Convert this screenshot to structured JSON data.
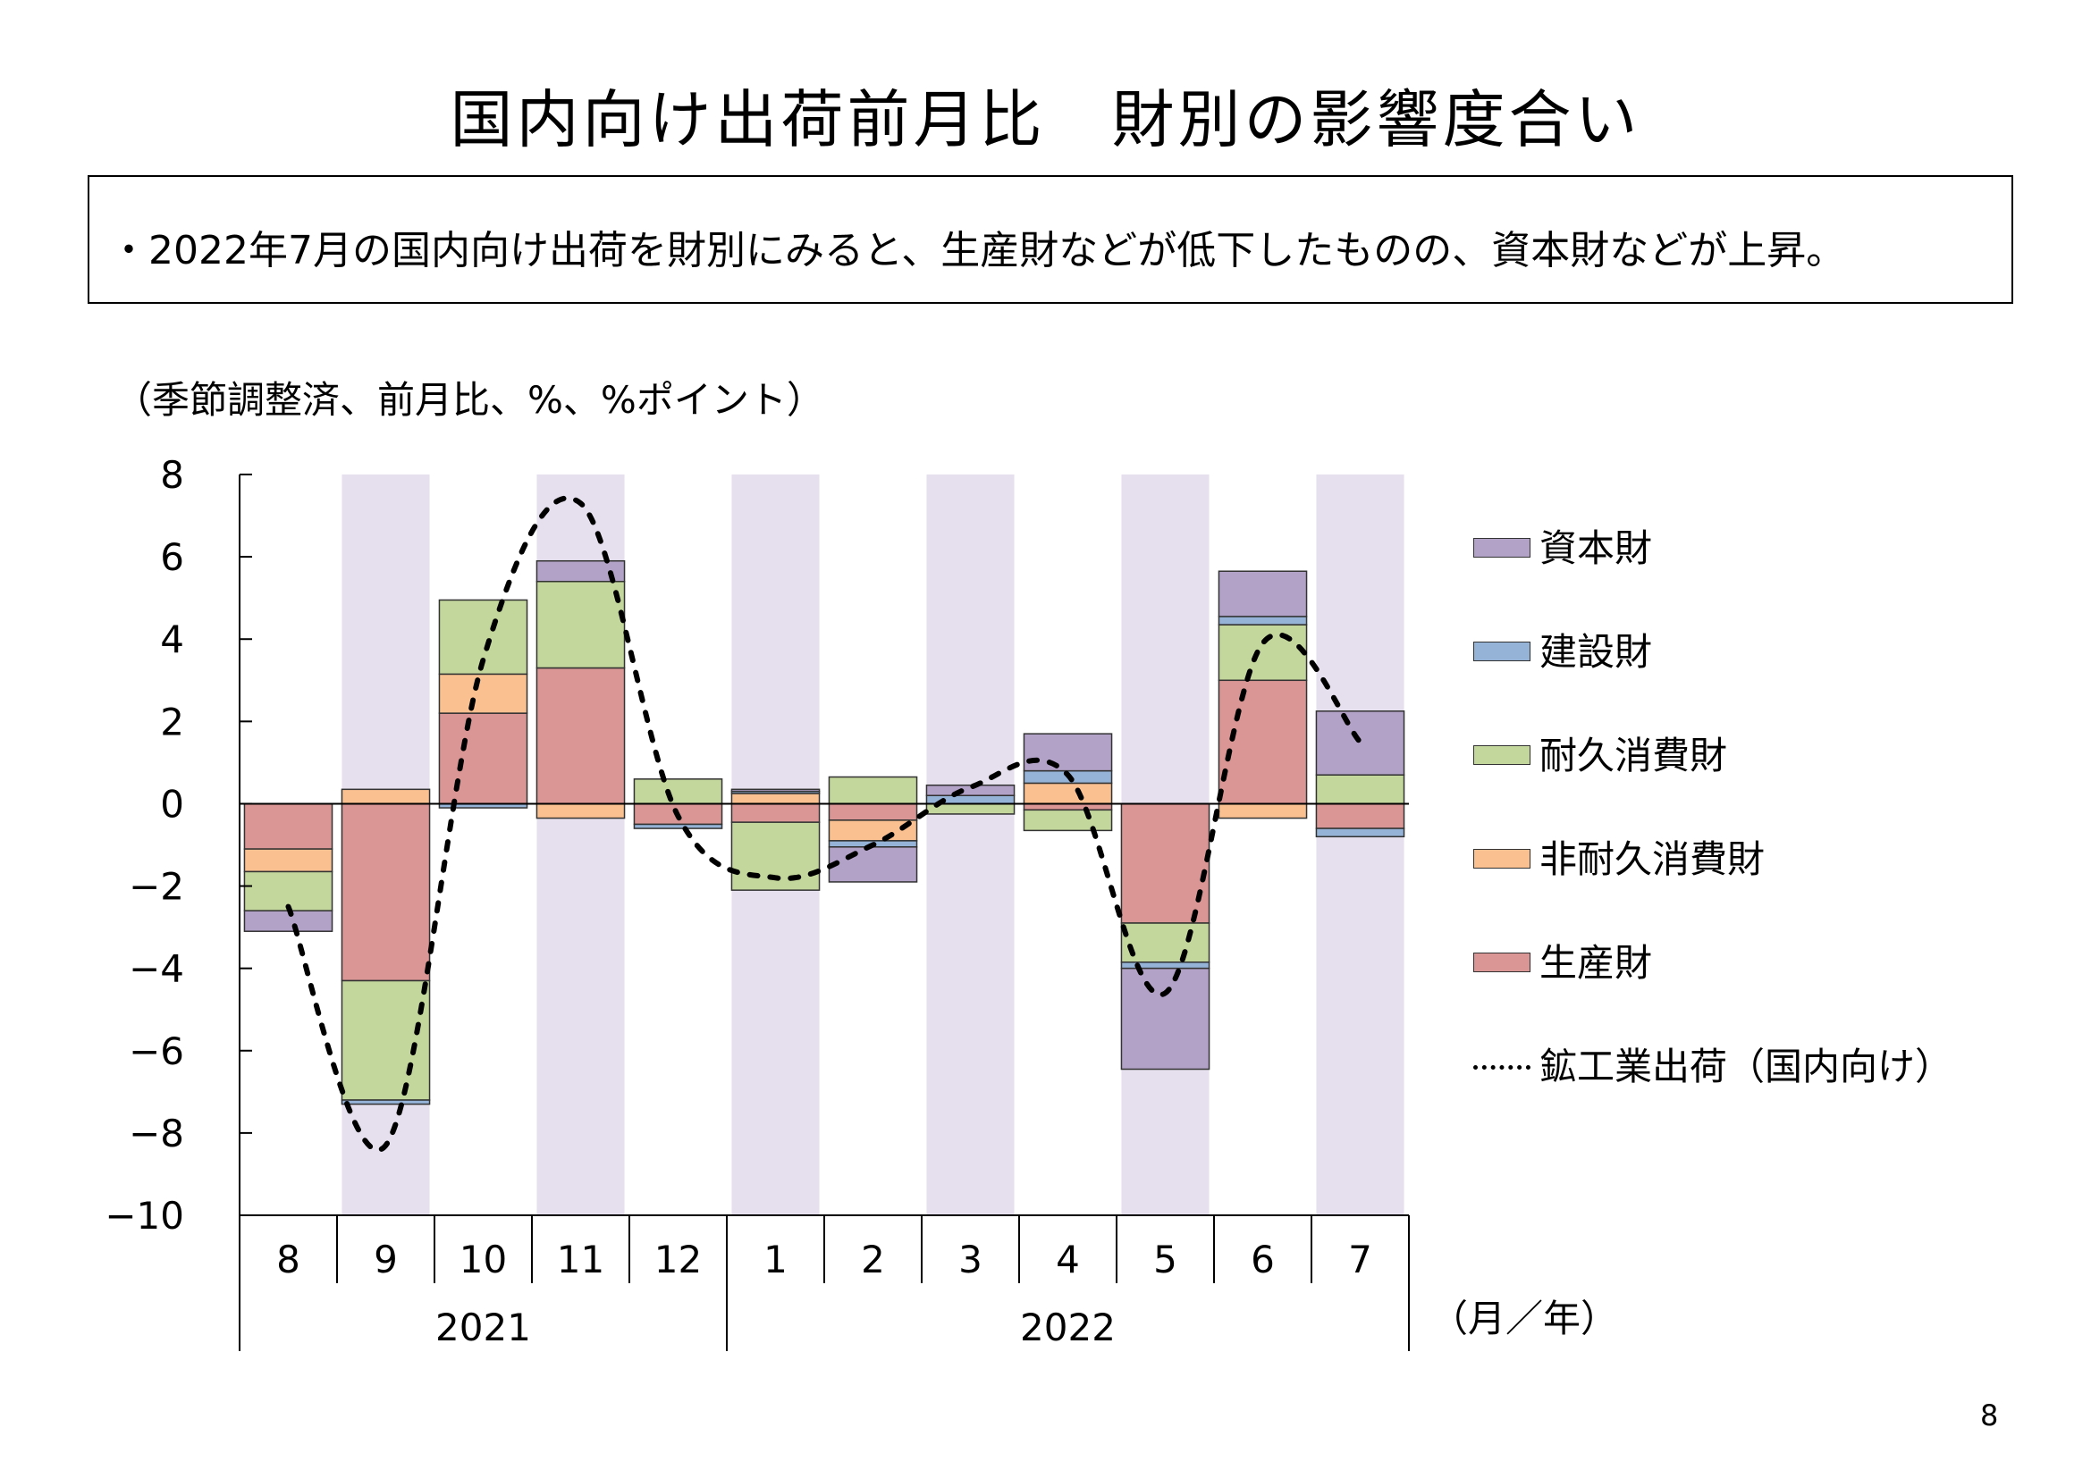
{
  "page": {
    "title": "国内向け出荷前月比　財別の影響度合い",
    "summary": "・2022年7月の国内向け出荷を財別にみると、生産財などが低下したものの、資本財などが上昇。",
    "unit_note": "（季節調整済、前月比、%、%ポイント）",
    "page_number": "8"
  },
  "chart_data": {
    "type": "bar",
    "stacked": true,
    "ylim": [
      -10,
      8
    ],
    "yticks": [
      -10,
      -8,
      -6,
      -4,
      -2,
      0,
      2,
      4,
      6,
      8
    ],
    "categories": [
      "8",
      "9",
      "10",
      "11",
      "12",
      "1",
      "2",
      "3",
      "4",
      "5",
      "6",
      "7"
    ],
    "year_groups": [
      {
        "label": "2021",
        "span": 5
      },
      {
        "label": "2022",
        "span": 7
      }
    ],
    "x_unit": "（月／年）",
    "shaded_columns": [
      1,
      3,
      5,
      7,
      9,
      11
    ],
    "shade_color": "#e6e0ee",
    "series": [
      {
        "name": "生産財",
        "color": "#d99694",
        "values": [
          -1.1,
          -4.3,
          2.2,
          3.3,
          -0.5,
          -0.45,
          -0.4,
          0.0,
          -0.15,
          -2.9,
          3.0,
          -0.6
        ]
      },
      {
        "name": "非耐久消費財",
        "color": "#fac090",
        "values": [
          -0.55,
          0.35,
          0.95,
          -0.35,
          0.0,
          0.25,
          -0.5,
          0.0,
          0.5,
          0.0,
          -0.35,
          0.0
        ]
      },
      {
        "name": "耐久消費財",
        "color": "#c3d69b",
        "values": [
          -0.95,
          -2.9,
          1.8,
          2.1,
          0.6,
          -1.65,
          0.65,
          -0.25,
          -0.5,
          -0.95,
          1.35,
          0.7
        ]
      },
      {
        "name": "建設財",
        "color": "#95b3d7",
        "values": [
          0.0,
          -0.1,
          -0.1,
          0.0,
          -0.1,
          0.05,
          -0.15,
          0.2,
          0.3,
          -0.15,
          0.2,
          -0.2
        ]
      },
      {
        "name": "資本財",
        "color": "#b3a2c7",
        "values": [
          -0.5,
          0.0,
          0.0,
          0.5,
          0.0,
          0.05,
          -0.85,
          0.25,
          0.9,
          -2.45,
          1.1,
          1.55
        ]
      }
    ],
    "line_series": {
      "name": "鉱工業出荷（国内向け）",
      "color": "#000000",
      "values": [
        -2.5,
        -8.3,
        3.5,
        7.3,
        -0.3,
        -1.8,
        -1.0,
        0.4,
        0.7,
        -4.6,
        3.9,
        1.5
      ]
    },
    "legend_order": [
      "資本財",
      "建設財",
      "耐久消費財",
      "非耐久消費財",
      "生産財",
      "鉱工業出荷（国内向け）"
    ],
    "legend_position": "right"
  }
}
